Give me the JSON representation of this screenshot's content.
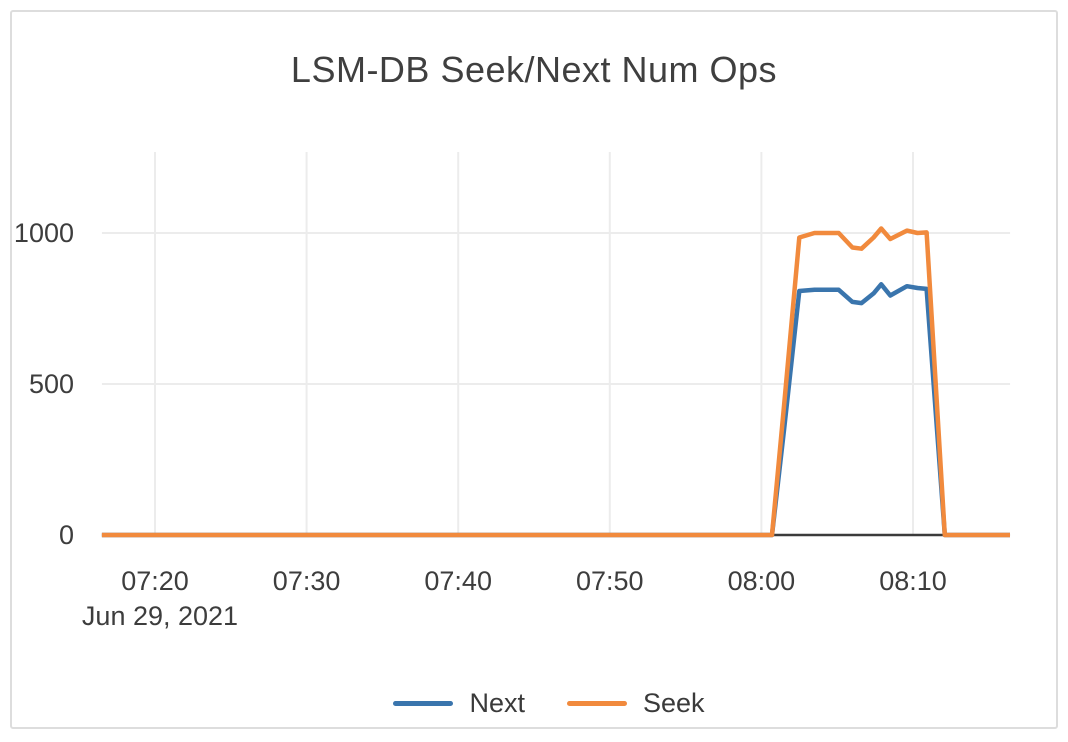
{
  "chart_data": {
    "type": "line",
    "title": "LSM-DB Seek/Next Num Ops",
    "x_axis": {
      "unit": "time (minutes after 07:00, Jun 29 2021)",
      "date_label": "Jun 29, 2021",
      "range": [
        16.5,
        76.4
      ],
      "ticks": [
        {
          "t": 20,
          "label": "07:20"
        },
        {
          "t": 30,
          "label": "07:30"
        },
        {
          "t": 40,
          "label": "07:40"
        },
        {
          "t": 50,
          "label": "07:50"
        },
        {
          "t": 60,
          "label": "08:00"
        },
        {
          "t": 70,
          "label": "08:10"
        }
      ]
    },
    "y_axis": {
      "range": [
        0,
        1265
      ],
      "ticks": [
        {
          "v": 0,
          "label": "0"
        },
        {
          "v": 500,
          "label": "500"
        },
        {
          "v": 1000,
          "label": "1000"
        }
      ]
    },
    "x": [
      16.5,
      20,
      25,
      30,
      35,
      40,
      45,
      50,
      55,
      60,
      60.7,
      61.5,
      62.5,
      63.5,
      65.1,
      66.0,
      66.6,
      67.4,
      67.9,
      68.5,
      69.6,
      70.3,
      70.9,
      72.1,
      73,
      76.4
    ],
    "series": [
      {
        "name": "Next",
        "color": "#3a75ad",
        "values": [
          0,
          0,
          0,
          0,
          0,
          0,
          0,
          0,
          0,
          0,
          0,
          350,
          808,
          812,
          812,
          772,
          768,
          800,
          830,
          793,
          824,
          818,
          815,
          0,
          0,
          0
        ]
      },
      {
        "name": "Seek",
        "color": "#f18a3d",
        "values": [
          0,
          0,
          0,
          0,
          0,
          0,
          0,
          0,
          0,
          0,
          0,
          430,
          985,
          1000,
          1000,
          952,
          948,
          985,
          1015,
          980,
          1008,
          1000,
          1002,
          0,
          0,
          0
        ]
      }
    ],
    "legend": {
      "position": "bottom",
      "entries": [
        "Next",
        "Seek"
      ]
    },
    "grid": {
      "vertical": true,
      "horizontal": true,
      "gridline_color": "#ececec",
      "zero_line_color": "#3b3b3b"
    }
  }
}
